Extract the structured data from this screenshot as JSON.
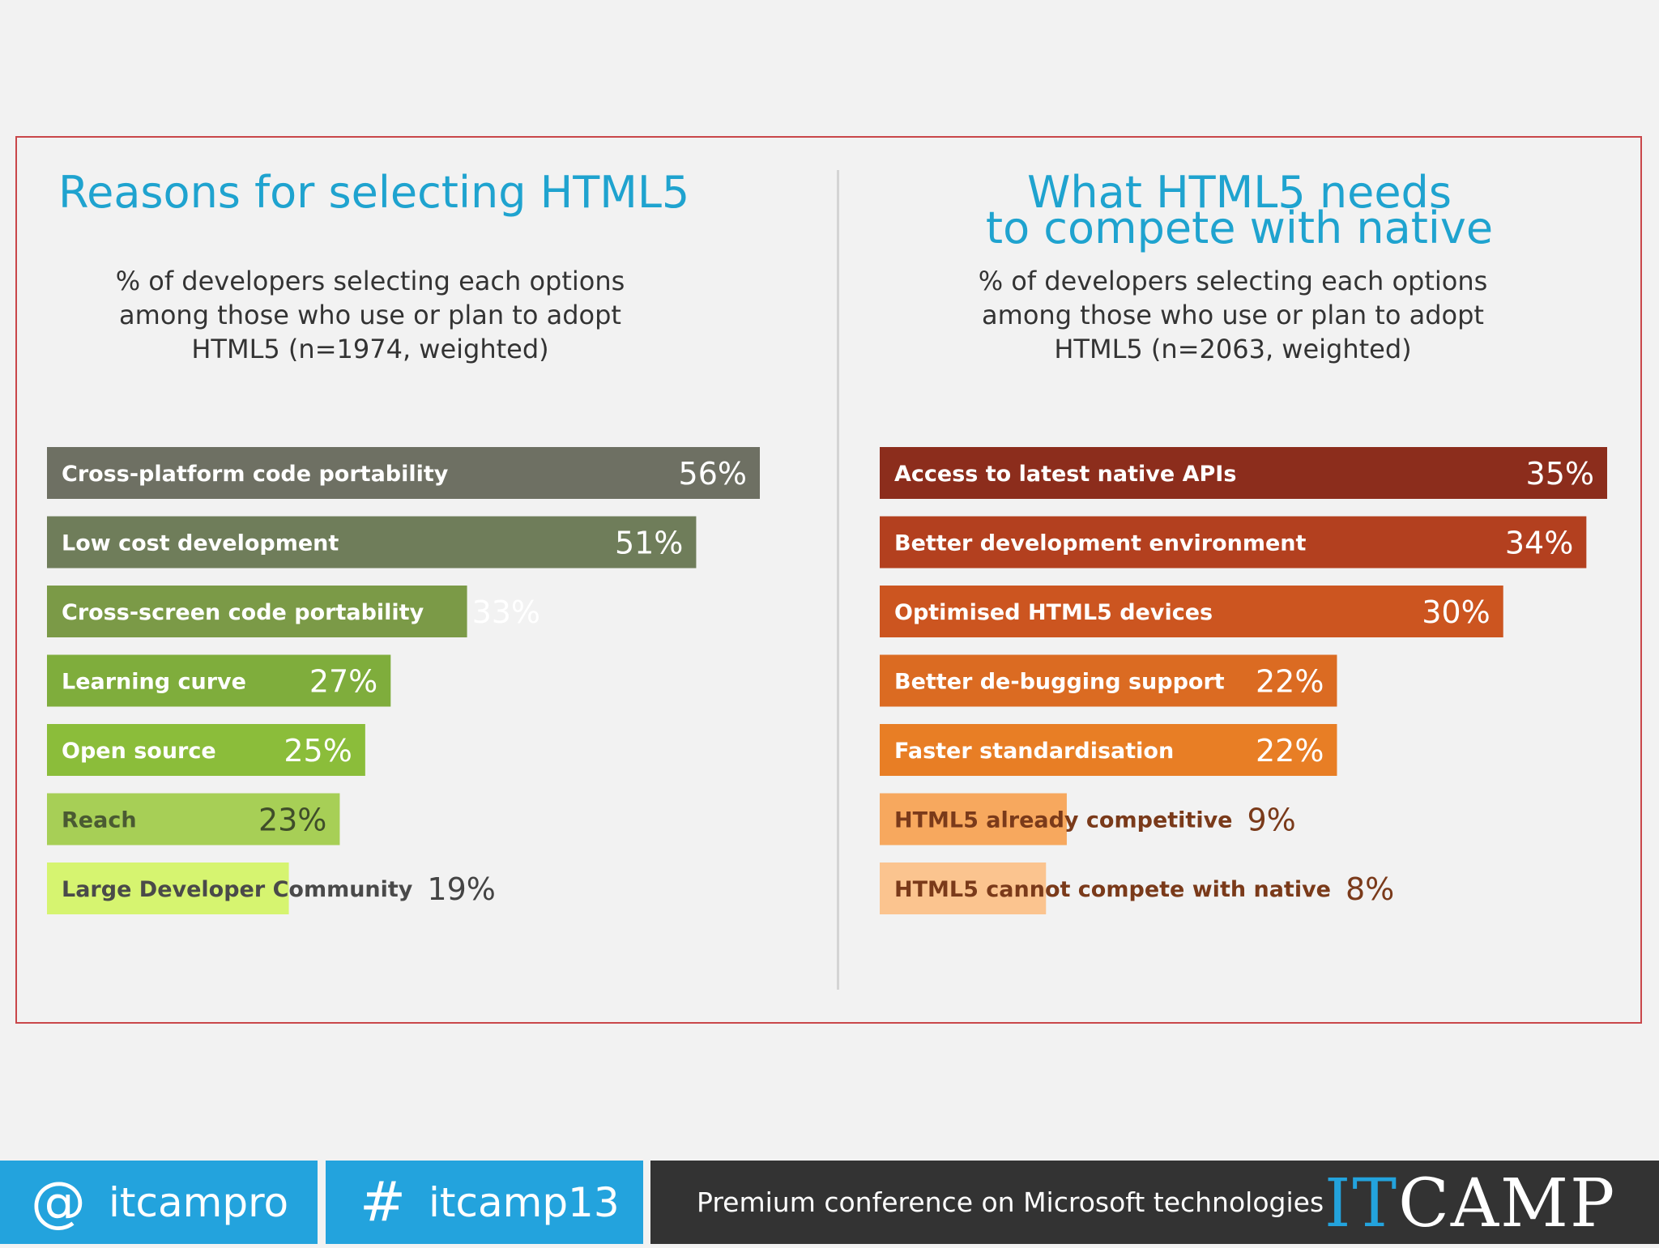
{
  "left_panel": {
    "title": "Reasons for selecting HTML5",
    "subtitle": [
      "% of developers selecting each options",
      "among those who use or plan to adopt",
      "HTML5 (n=1974, weighted)"
    ]
  },
  "right_panel": {
    "title": [
      "What HTML5 needs",
      "to compete with native"
    ],
    "subtitle": [
      "% of developers selecting each options",
      "among those who use or plan to adopt",
      "HTML5 (n=2063, weighted)"
    ]
  },
  "chart_data": [
    {
      "type": "bar",
      "orientation": "horizontal",
      "title": "Reasons for selecting HTML5",
      "categories": [
        "Cross-platform code portability",
        "Low cost development",
        "Cross-screen code portability",
        "Learning curve",
        "Open source",
        "Reach",
        "Large Developer Community"
      ],
      "values": [
        56,
        51,
        33,
        27,
        25,
        23,
        19
      ],
      "value_labels": [
        "56%",
        "51%",
        "33%",
        "27%",
        "25%",
        "23%",
        "19%"
      ],
      "colors": [
        "#6e7063",
        "#6f7d5a",
        "#7b9a47",
        "#7fad3c",
        "#8bbd3a",
        "#a7cf56",
        "#d6f470"
      ],
      "label_colors": [
        "#ffffff",
        "#ffffff",
        "#ffffff",
        "#ffffff",
        "#ffffff",
        "#4a5a32",
        "#4a4a4a"
      ],
      "value_colors": [
        "#ffffff",
        "#ffffff",
        "#ffffff",
        "#ffffff",
        "#ffffff",
        "#3f4d2a",
        "#444444"
      ],
      "xlim": [
        0,
        56
      ]
    },
    {
      "type": "bar",
      "orientation": "horizontal",
      "title": "What HTML5 needs to compete with native",
      "categories": [
        "Access to latest native APIs",
        "Better development environment",
        "Optimised HTML5 devices",
        "Better de-bugging support",
        "Faster standardisation",
        "HTML5  already competitive",
        "HTML5 cannot compete with native"
      ],
      "values": [
        35,
        34,
        30,
        22,
        22,
        9,
        8
      ],
      "value_labels": [
        "35%",
        "34%",
        "30%",
        "22%",
        "22%",
        "9%",
        "8%"
      ],
      "colors": [
        "#8c2d1c",
        "#b3401f",
        "#cc5520",
        "#db6b22",
        "#e87e25",
        "#f7a85e",
        "#fbc48f"
      ],
      "label_colors": [
        "#ffffff",
        "#ffffff",
        "#ffffff",
        "#ffffff",
        "#ffffff",
        "#7a3a1a",
        "#7a3a1a"
      ],
      "value_colors": [
        "#ffffff",
        "#ffffff",
        "#ffffff",
        "#ffffff",
        "#ffffff",
        "#7a3a1a",
        "#7a3a1a"
      ],
      "xlim": [
        0,
        35
      ]
    }
  ],
  "footer": {
    "twitter_symbol": "@",
    "twitter_handle": "itcampro",
    "hashtag_symbol": "#",
    "hashtag": "itcamp13",
    "tagline": "Premium conference on Microsoft technologies",
    "logo_it": "IT",
    "logo_camp": "CAMP"
  }
}
